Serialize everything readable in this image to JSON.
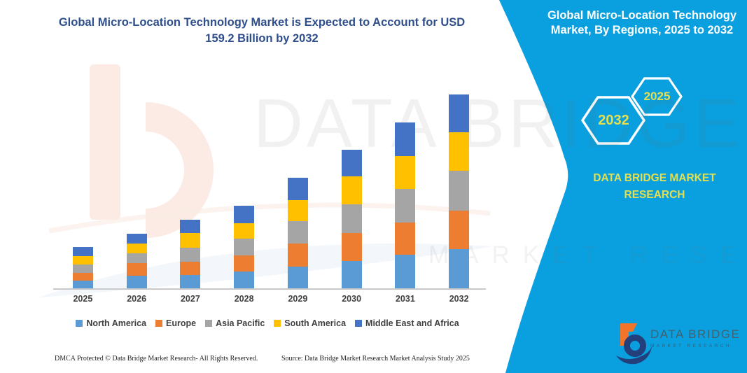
{
  "header": {
    "title_line1": "Global Micro-Location Technology Market is Expected to Account for USD",
    "title_line2": "159.2 Billion by 2032",
    "title_color": "#2F4E8C"
  },
  "side_panel": {
    "bg_color": "#0AA0DF",
    "accent_text_color": "#E4DF4F",
    "title_line1": "Global Micro-Location Technology",
    "title_line2": "Market, By Regions, 2025 to 2032",
    "hexagons": [
      {
        "label": "2032"
      },
      {
        "label": "2025"
      }
    ],
    "brand": "DATA BRIDGE MARKET RESEARCH"
  },
  "chart_data": {
    "type": "bar",
    "stacked": true,
    "title": "Global Micro-Location Technology Market is Expected to Account for USD 159.2 Billion by 2032",
    "unit": "USD Billion",
    "categories": [
      "2025",
      "2026",
      "2027",
      "2028",
      "2029",
      "2030",
      "2031",
      "2032"
    ],
    "series": [
      {
        "name": "North America",
        "color": "#5B9BD5",
        "values": [
          6.5,
          10.2,
          10.7,
          14.0,
          17.8,
          22.6,
          27.4,
          32.1
        ]
      },
      {
        "name": "Europe",
        "color": "#ED7D31",
        "values": [
          6.3,
          10.5,
          10.9,
          13.2,
          19.1,
          23.0,
          26.8,
          31.6
        ]
      },
      {
        "name": "Asia Pacific",
        "color": "#A5A5A5",
        "values": [
          6.7,
          8.2,
          11.9,
          13.4,
          18.2,
          23.4,
          27.7,
          32.6
        ]
      },
      {
        "name": "South America",
        "color": "#FFC000",
        "values": [
          7.1,
          8.0,
          12.1,
          13.0,
          17.6,
          23.0,
          26.8,
          31.6
        ]
      },
      {
        "name": "Middle East and Africa",
        "color": "#4472C4",
        "values": [
          7.3,
          8.2,
          10.9,
          14.4,
          18.4,
          21.6,
          27.7,
          31.3
        ]
      }
    ],
    "totals": [
      33.9,
      45.1,
      56.5,
      68.0,
      91.1,
      113.6,
      136.4,
      159.2
    ],
    "xlabel": "",
    "ylabel": "",
    "ylim": [
      0,
      160
    ],
    "y_axis_visible": false,
    "gridlines": false,
    "legend_position": "bottom"
  },
  "watermark": {
    "line1": "DATA BRIDGE",
    "line2": "MARKET RESEARCH"
  },
  "footer": {
    "dmca": "DMCA Protected © Data Bridge Market Research-  All Rights Reserved.",
    "source": "Source: Data Bridge Market Research  Market Analysis Study 2025"
  },
  "logo": {
    "name": "DATA BRIDGE",
    "subtitle": "MARKET RESEARCH"
  }
}
